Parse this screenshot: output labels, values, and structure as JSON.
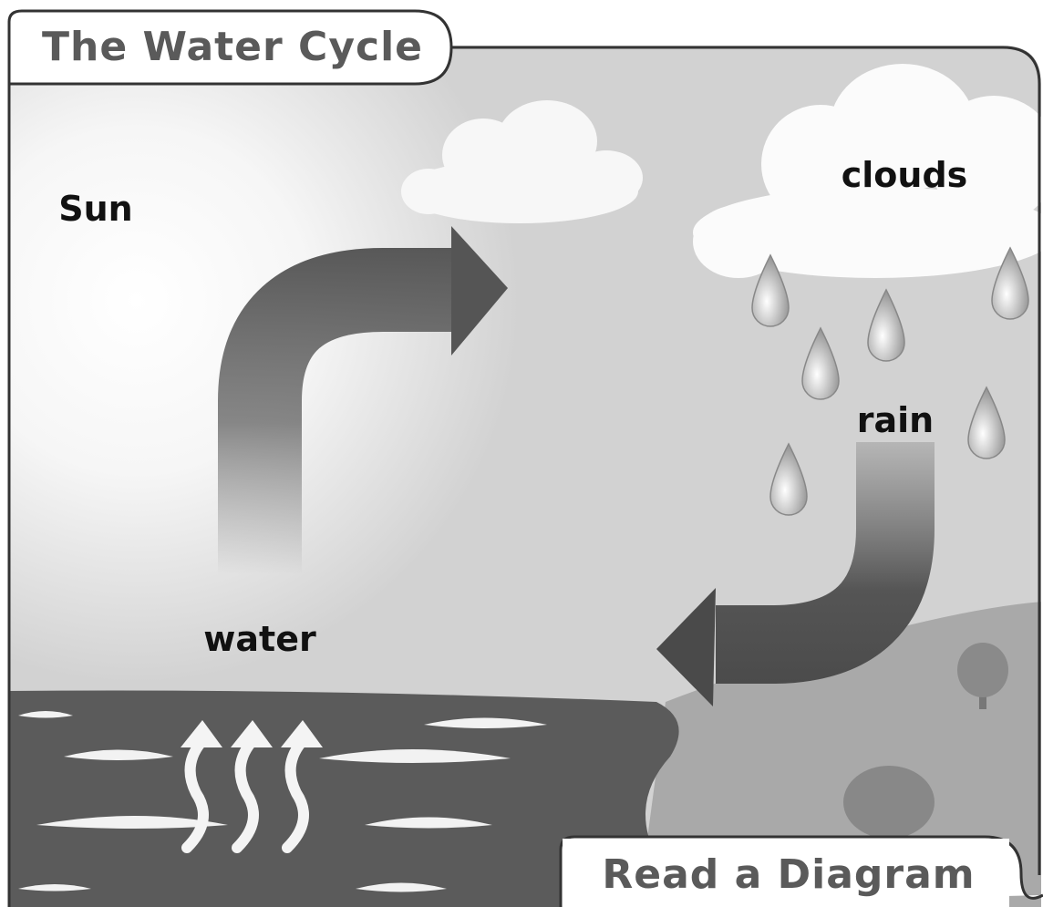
{
  "header": {
    "title": "The Water Cycle"
  },
  "labels": {
    "sun": "Sun",
    "clouds": "clouds",
    "rain": "rain",
    "water": "water"
  },
  "footer": {
    "label": "Read a Diagram"
  }
}
